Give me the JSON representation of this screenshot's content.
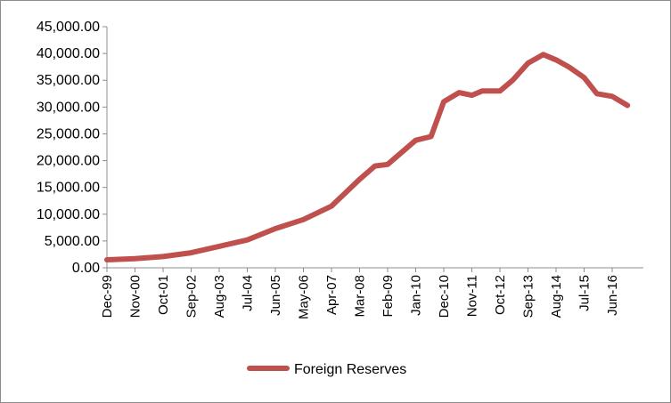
{
  "chart_data": {
    "type": "line",
    "title": "",
    "xlabel": "",
    "ylabel": "",
    "ylim": [
      0,
      45000
    ],
    "y_ticks": [
      "0.00",
      "5,000.00",
      "10,000.00",
      "15,000.00",
      "20,000.00",
      "25,000.00",
      "30,000.00",
      "35,000.00",
      "40,000.00",
      "45,000.00"
    ],
    "x_tick_labels": [
      "Dec-99",
      "Nov-00",
      "Oct-01",
      "Sep-02",
      "Aug-03",
      "Jul-04",
      "Jun-05",
      "May-06",
      "Apr-07",
      "Mar-08",
      "Feb-09",
      "Jan-10",
      "Dec-10",
      "Nov-11",
      "Oct-12",
      "Sep-13",
      "Aug-14",
      "Jul-15",
      "Jun-16"
    ],
    "grid": false,
    "legend_position": "bottom-center",
    "series": [
      {
        "name": "Foreign Reserves",
        "color": "#c0504d",
        "x": [
          "Dec-99",
          "Nov-00",
          "Oct-01",
          "Sep-02",
          "Aug-03",
          "Jul-04",
          "Jun-05",
          "May-06",
          "Apr-07",
          "Mar-08",
          "Sep-08",
          "Feb-09",
          "Jan-10",
          "Jul-10",
          "Dec-10",
          "Jun-11",
          "Nov-11",
          "Mar-12",
          "Oct-12",
          "Mar-13",
          "Sep-13",
          "Mar-14",
          "Aug-14",
          "Jan-15",
          "Jul-15",
          "Dec-15",
          "Jun-16",
          "Dec-16"
        ],
        "values": [
          1500,
          1700,
          2100,
          2800,
          4000,
          5200,
          7300,
          9000,
          11500,
          16500,
          19000,
          19300,
          23800,
          24500,
          31000,
          32700,
          32200,
          33000,
          33000,
          35000,
          38200,
          39800,
          38800,
          37500,
          35500,
          32500,
          32000,
          30300
        ]
      }
    ]
  }
}
